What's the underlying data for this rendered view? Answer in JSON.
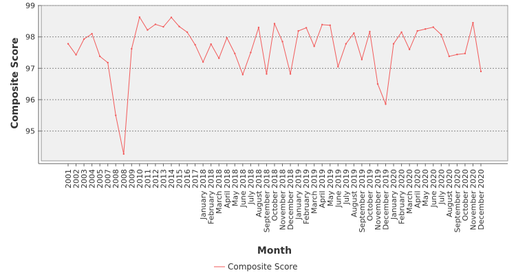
{
  "chart_data": {
    "type": "line",
    "title": "",
    "xlabel": "Month",
    "ylabel": "Composite Score",
    "ylim": [
      94.05,
      99.0
    ],
    "yticks": [
      95,
      96,
      97,
      98,
      99
    ],
    "grid": true,
    "legend_position": "bottom-center",
    "categories": [
      "2001",
      "2002",
      "2003",
      "2004",
      "2005",
      "2007",
      "2008",
      "2008",
      "2009",
      "2010",
      "2011",
      "2012",
      "2013",
      "2014",
      "2015",
      "2016",
      "2017",
      "January 2018",
      "February 2018",
      "March 2018",
      "April 2018",
      "May 2018",
      "June 2018",
      "July 2018",
      "August 2018",
      "September 2018",
      "October 2018",
      "November 2018",
      "December 2018",
      "January 2019",
      "February 2019",
      "March 2019",
      "April 2019",
      "May 2019",
      "June 2019",
      "July 2019",
      "August 2019",
      "September 2019",
      "October 2019",
      "November 2019",
      "December 2019",
      "January 2020",
      "February 2020",
      "March 2020",
      "April 2020",
      "May 2020",
      "June 2020",
      "July 2020",
      "August 2020",
      "September 2020",
      "October 2020",
      "November 2020",
      "December 2020"
    ],
    "series": [
      {
        "name": "Composite Score",
        "color": "#f25a5a",
        "values": [
          97.78,
          97.43,
          97.93,
          98.1,
          97.38,
          97.18,
          95.5,
          94.27,
          97.62,
          98.63,
          98.22,
          98.4,
          98.32,
          98.62,
          98.33,
          98.15,
          97.75,
          97.2,
          97.77,
          97.32,
          97.97,
          97.47,
          96.8,
          97.5,
          98.3,
          96.82,
          98.42,
          97.85,
          96.82,
          98.19,
          98.29,
          97.7,
          98.39,
          98.37,
          97.05,
          97.78,
          98.12,
          97.28,
          98.17,
          96.5,
          95.86,
          97.78,
          98.15,
          97.6,
          98.19,
          98.25,
          98.31,
          98.07,
          97.38,
          97.44,
          97.47,
          98.45,
          96.9
        ]
      }
    ]
  }
}
